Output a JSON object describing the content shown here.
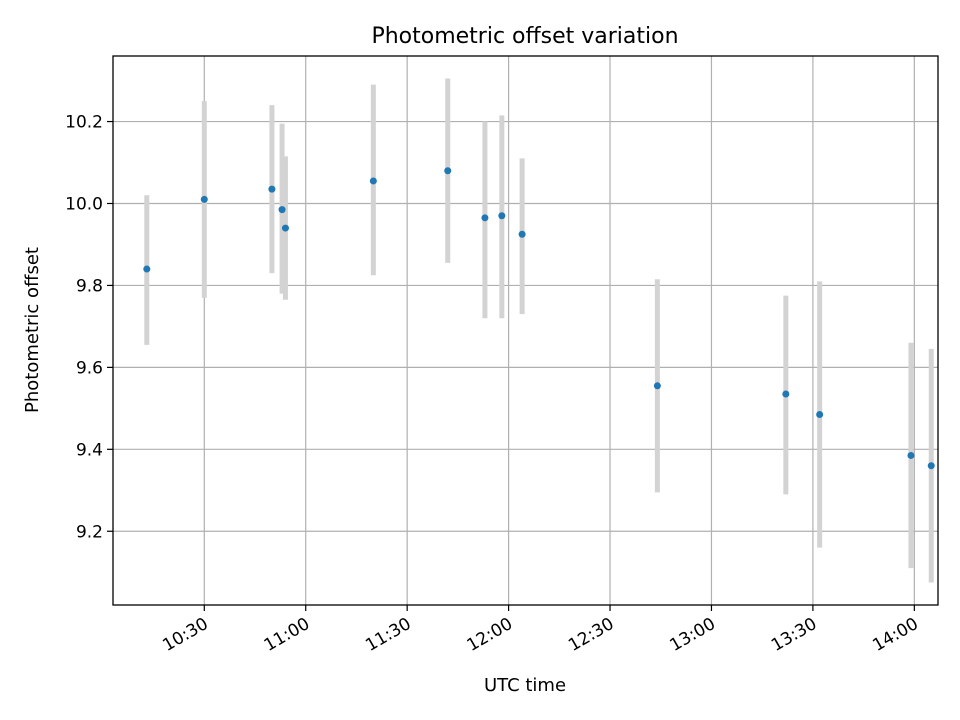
{
  "chart_data": {
    "type": "scatter",
    "title": "Photometric offset variation",
    "xlabel": "UTC time",
    "ylabel": "Photometric offset",
    "grid": true,
    "xlim": [
      "10:03",
      "14:07"
    ],
    "ylim": [
      9.02,
      10.36
    ],
    "x_ticks": [
      "10:30",
      "11:00",
      "11:30",
      "12:00",
      "12:30",
      "13:00",
      "13:30",
      "14:00"
    ],
    "y_ticks": [
      "9.2",
      "9.4",
      "9.6",
      "9.8",
      "10.0",
      "10.2"
    ],
    "marker_color": "#1f77b4",
    "errorbar_color": "#d3d3d3",
    "points": [
      {
        "x": "10:13",
        "y": 9.84,
        "ylow": 9.655,
        "yhigh": 10.02
      },
      {
        "x": "10:30",
        "y": 10.01,
        "ylow": 9.77,
        "yhigh": 10.25
      },
      {
        "x": "10:50",
        "y": 10.035,
        "ylow": 9.83,
        "yhigh": 10.24
      },
      {
        "x": "10:53",
        "y": 9.985,
        "ylow": 9.78,
        "yhigh": 10.195
      },
      {
        "x": "10:54",
        "y": 9.94,
        "ylow": 9.765,
        "yhigh": 10.115
      },
      {
        "x": "11:20",
        "y": 10.055,
        "ylow": 9.825,
        "yhigh": 10.29
      },
      {
        "x": "11:42",
        "y": 10.08,
        "ylow": 9.855,
        "yhigh": 10.305
      },
      {
        "x": "11:53",
        "y": 9.965,
        "ylow": 9.72,
        "yhigh": 10.2
      },
      {
        "x": "11:58",
        "y": 9.97,
        "ylow": 9.72,
        "yhigh": 10.215
      },
      {
        "x": "12:04",
        "y": 9.925,
        "ylow": 9.73,
        "yhigh": 10.11
      },
      {
        "x": "12:44",
        "y": 9.555,
        "ylow": 9.295,
        "yhigh": 9.815
      },
      {
        "x": "13:22",
        "y": 9.535,
        "ylow": 9.29,
        "yhigh": 9.775
      },
      {
        "x": "13:32",
        "y": 9.485,
        "ylow": 9.16,
        "yhigh": 9.81
      },
      {
        "x": "13:59",
        "y": 9.385,
        "ylow": 9.11,
        "yhigh": 9.66
      },
      {
        "x": "14:05",
        "y": 9.36,
        "ylow": 9.075,
        "yhigh": 9.645
      }
    ]
  }
}
